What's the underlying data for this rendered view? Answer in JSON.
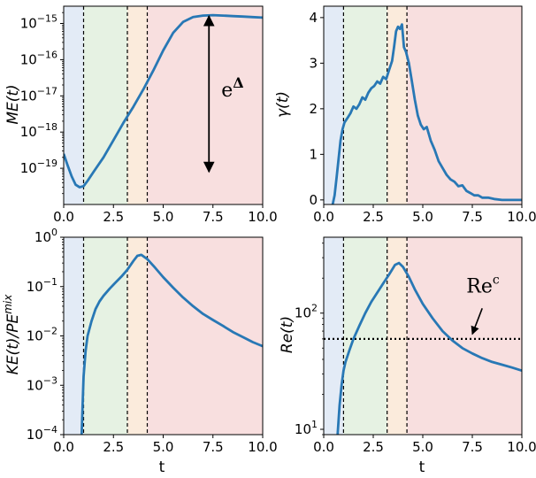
{
  "chart_data": [
    {
      "type": "line",
      "panel": "top-left",
      "ylabel": "ME(t)",
      "xlabel": "",
      "xlim": [
        0,
        10
      ],
      "yscale": "log",
      "ylim": [
        1e-20,
        3e-15
      ],
      "xticks": [
        "0.0",
        "2.5",
        "5.0",
        "7.5",
        "10.0"
      ],
      "yticks": [
        {
          "value": 1e-19,
          "base": "10",
          "exp": "−19"
        },
        {
          "value": 1e-18,
          "base": "10",
          "exp": "−18"
        },
        {
          "value": 1e-17,
          "base": "10",
          "exp": "−17"
        },
        {
          "value": 1e-16,
          "base": "10",
          "exp": "−16"
        },
        {
          "value": 1e-15,
          "base": "10",
          "exp": "−15"
        }
      ],
      "phases": [
        1.0,
        3.2,
        4.2
      ],
      "annotation": {
        "text": "e",
        "sup": "Δ",
        "arrow_from": 1.6e-15,
        "arrow_to": 8e-20,
        "arrow_x": 7.3
      },
      "x": [
        0,
        0.2,
        0.4,
        0.6,
        0.8,
        1.0,
        1.2,
        1.5,
        2.0,
        2.5,
        3.0,
        3.5,
        4.0,
        4.5,
        5.0,
        5.5,
        6.0,
        6.5,
        7.0,
        7.5,
        8.0,
        8.5,
        9.0,
        9.5,
        10.0
      ],
      "y": [
        2.5e-19,
        1.2e-19,
        6e-20,
        3.5e-20,
        3e-20,
        3.2e-20,
        4.5e-20,
        8e-20,
        2e-19,
        6e-19,
        1.8e-18,
        5e-18,
        1.5e-17,
        5e-17,
        1.8e-16,
        5.5e-16,
        1.1e-15,
        1.5e-15,
        1.65e-15,
        1.7e-15,
        1.65e-15,
        1.6e-15,
        1.55e-15,
        1.5e-15,
        1.45e-15
      ]
    },
    {
      "type": "line",
      "panel": "top-right",
      "ylabel": "γ(t)",
      "xlabel": "",
      "xlim": [
        0,
        10
      ],
      "yscale": "linear",
      "ylim": [
        -0.1,
        4.25
      ],
      "xticks": [
        "0.0",
        "2.5",
        "5.0",
        "7.5",
        "10.0"
      ],
      "yticks": [
        {
          "value": 0,
          "label": "0"
        },
        {
          "value": 1,
          "label": "1"
        },
        {
          "value": 2,
          "label": "2"
        },
        {
          "value": 3,
          "label": "3"
        },
        {
          "value": 4,
          "label": "4"
        }
      ],
      "phases": [
        1.0,
        3.2,
        4.2
      ],
      "x": [
        0.45,
        0.55,
        0.65,
        0.75,
        0.85,
        0.95,
        1.05,
        1.2,
        1.35,
        1.5,
        1.65,
        1.8,
        1.95,
        2.1,
        2.25,
        2.4,
        2.55,
        2.7,
        2.85,
        3.0,
        3.15,
        3.3,
        3.45,
        3.55,
        3.65,
        3.75,
        3.85,
        3.95,
        4.05,
        4.15,
        4.3,
        4.45,
        4.6,
        4.75,
        4.9,
        5.05,
        5.2,
        5.4,
        5.6,
        5.8,
        6.0,
        6.2,
        6.4,
        6.6,
        6.8,
        7.0,
        7.2,
        7.4,
        7.6,
        7.8,
        8.0,
        8.3,
        8.6,
        9.0,
        9.5,
        10.0
      ],
      "y": [
        -0.1,
        0.1,
        0.5,
        0.9,
        1.3,
        1.55,
        1.7,
        1.8,
        1.9,
        2.05,
        2.0,
        2.1,
        2.25,
        2.2,
        2.35,
        2.45,
        2.5,
        2.6,
        2.55,
        2.7,
        2.65,
        2.85,
        3.05,
        3.35,
        3.7,
        3.8,
        3.75,
        3.85,
        3.35,
        3.25,
        3.0,
        2.6,
        2.2,
        1.85,
        1.65,
        1.55,
        1.6,
        1.3,
        1.1,
        0.85,
        0.7,
        0.55,
        0.45,
        0.4,
        0.3,
        0.32,
        0.2,
        0.15,
        0.1,
        0.1,
        0.05,
        0.05,
        0.02,
        0.0,
        0.0,
        0.0
      ]
    },
    {
      "type": "line",
      "panel": "bottom-left",
      "ylabel": "KE(t)/PE",
      "ylabel_sup": "mix",
      "xlabel": "t",
      "xlim": [
        0,
        10
      ],
      "yscale": "log",
      "ylim": [
        0.0001,
        1
      ],
      "xticks": [
        "0.0",
        "2.5",
        "5.0",
        "7.5",
        "10.0"
      ],
      "yticks": [
        {
          "value": 0.0001,
          "base": "10",
          "exp": "−4"
        },
        {
          "value": 0.001,
          "base": "10",
          "exp": "−3"
        },
        {
          "value": 0.01,
          "base": "10",
          "exp": "−2"
        },
        {
          "value": 0.1,
          "base": "10",
          "exp": "−1"
        },
        {
          "value": 1,
          "base": "10",
          "exp": "0"
        }
      ],
      "phases": [
        1.0,
        3.2,
        4.2
      ],
      "x": [
        0.9,
        0.95,
        1.0,
        1.1,
        1.2,
        1.4,
        1.6,
        1.8,
        2.0,
        2.3,
        2.6,
        2.9,
        3.2,
        3.5,
        3.7,
        3.9,
        4.2,
        4.6,
        5.0,
        5.5,
        6.0,
        6.5,
        7.0,
        7.5,
        8.0,
        8.5,
        9.0,
        9.5,
        10.0
      ],
      "y": [
        0.0001,
        0.0004,
        0.0015,
        0.005,
        0.01,
        0.02,
        0.035,
        0.05,
        0.065,
        0.09,
        0.12,
        0.16,
        0.22,
        0.33,
        0.42,
        0.44,
        0.36,
        0.24,
        0.155,
        0.095,
        0.06,
        0.04,
        0.028,
        0.021,
        0.016,
        0.012,
        0.0095,
        0.0075,
        0.0062
      ]
    },
    {
      "type": "line",
      "panel": "bottom-right",
      "ylabel": "Re(t)",
      "xlabel": "t",
      "xlim": [
        0,
        10
      ],
      "yscale": "log",
      "ylim": [
        9,
        450
      ],
      "xticks": [
        "0.0",
        "2.5",
        "5.0",
        "7.5",
        "10.0"
      ],
      "yticks": [
        {
          "value": 10,
          "base": "10",
          "exp": "1"
        },
        {
          "value": 100,
          "base": "10",
          "exp": "2"
        }
      ],
      "phases": [
        1.0,
        3.2,
        4.2
      ],
      "reference": {
        "value": 60,
        "label": "Re",
        "sup": "c"
      },
      "x": [
        0.7,
        0.75,
        0.8,
        0.9,
        1.0,
        1.1,
        1.3,
        1.5,
        1.8,
        2.1,
        2.4,
        2.7,
        3.0,
        3.3,
        3.6,
        3.8,
        4.0,
        4.3,
        4.6,
        5.0,
        5.5,
        6.0,
        6.5,
        7.0,
        7.5,
        8.0,
        8.5,
        9.0,
        9.5,
        10.0
      ],
      "y": [
        9,
        12,
        16,
        24,
        32,
        38,
        48,
        60,
        78,
        100,
        125,
        150,
        180,
        215,
        260,
        270,
        250,
        205,
        160,
        120,
        90,
        70,
        58,
        50,
        45,
        41,
        38,
        36,
        34,
        32
      ]
    }
  ]
}
